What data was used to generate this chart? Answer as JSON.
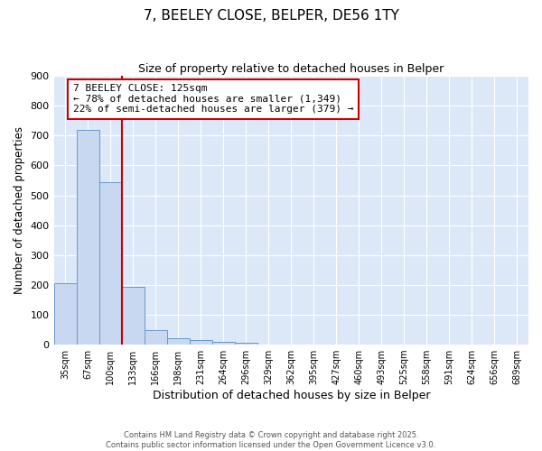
{
  "title": "7, BEELEY CLOSE, BELPER, DE56 1TY",
  "subtitle": "Size of property relative to detached houses in Belper",
  "xlabel": "Distribution of detached houses by size in Belper",
  "ylabel": "Number of detached properties",
  "bar_labels": [
    "35sqm",
    "67sqm",
    "100sqm",
    "133sqm",
    "166sqm",
    "198sqm",
    "231sqm",
    "264sqm",
    "296sqm",
    "329sqm",
    "362sqm",
    "395sqm",
    "427sqm",
    "460sqm",
    "493sqm",
    "525sqm",
    "558sqm",
    "591sqm",
    "624sqm",
    "656sqm",
    "689sqm"
  ],
  "bar_values": [
    205,
    720,
    545,
    195,
    48,
    22,
    15,
    10,
    5,
    0,
    0,
    0,
    0,
    0,
    0,
    0,
    0,
    0,
    0,
    0,
    0
  ],
  "bar_color": "#c8d8f0",
  "bar_edgecolor": "#6699cc",
  "ylim": [
    0,
    900
  ],
  "yticks": [
    0,
    100,
    200,
    300,
    400,
    500,
    600,
    700,
    800,
    900
  ],
  "red_line_index": 2.5,
  "annotation_title": "7 BEELEY CLOSE: 125sqm",
  "annotation_line1": "← 78% of detached houses are smaller (1,349)",
  "annotation_line2": "22% of semi-detached houses are larger (379) →",
  "annotation_box_facecolor": "#ffffff",
  "annotation_box_edgecolor": "#cc0000",
  "red_line_color": "#cc0000",
  "ax_facecolor": "#dce8f8",
  "fig_facecolor": "#ffffff",
  "grid_color": "#ffffff",
  "footer1": "Contains HM Land Registry data © Crown copyright and database right 2025.",
  "footer2": "Contains public sector information licensed under the Open Government Licence v3.0."
}
